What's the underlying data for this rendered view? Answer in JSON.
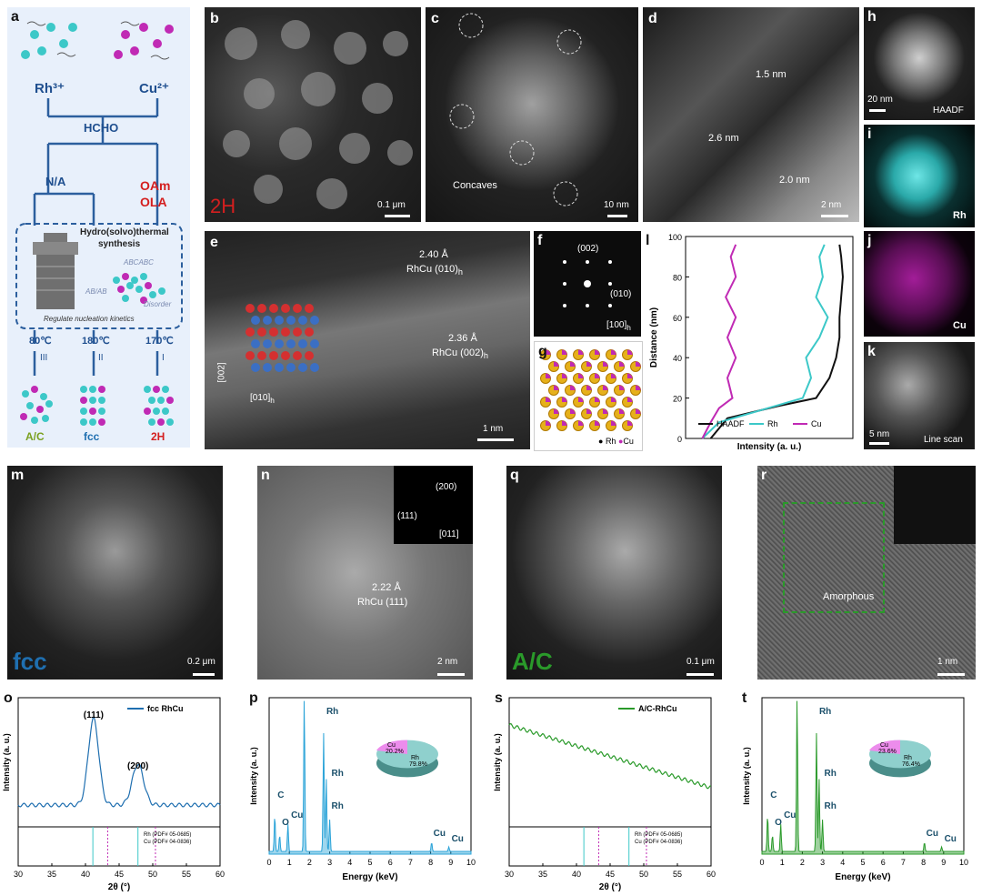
{
  "labels": {
    "a": "a",
    "b": "b",
    "c": "c",
    "d": "d",
    "e": "e",
    "f": "f",
    "g": "g",
    "h": "h",
    "i": "i",
    "j": "j",
    "k": "k",
    "l": "l",
    "m": "m",
    "n": "n",
    "o": "o",
    "p": "p",
    "q": "q",
    "r": "r",
    "s": "s",
    "t": "t"
  },
  "panel_a": {
    "rh": "Rh³⁺",
    "cu": "Cu²⁺",
    "hcho": "HCHO",
    "na": "N/A",
    "oam": "OAm",
    "ola": "OLA",
    "hydro": "Hydro(solvo)thermal",
    "synthesis": "synthesis",
    "abcabc": "ABCABC",
    "abab": "AB/AB",
    "disorder": "Disorder",
    "regulate": "Regulate nucleation kinetics",
    "t1": "80℃",
    "t2": "180℃",
    "t3": "170℃",
    "r1": "III",
    "r2": "II",
    "r3": "I",
    "p1": "A/C",
    "p2": "fcc",
    "p3": "2H"
  },
  "panel_b": {
    "tag": "2H",
    "scale": "0.1 μm"
  },
  "panel_c": {
    "text": "Concaves",
    "scale": "10 nm"
  },
  "panel_d": {
    "w1": "1.5 nm",
    "w2": "2.6 nm",
    "w3": "2.0 nm",
    "scale": "2 nm"
  },
  "panel_e": {
    "d1": "2.40 Å",
    "d1b": "RhCu (010)",
    "d2": "2.36 Å",
    "d2b": "RhCu (002)",
    "ax1": "[002]",
    "ax2": "[010]",
    "sub": "h",
    "scale": "1 nm"
  },
  "panel_f": {
    "s1": "(002)",
    "s2": "(010)",
    "zone": "[100]",
    "sub": "h"
  },
  "panel_g": {
    "rh": "Rh",
    "cu": "Cu"
  },
  "panel_h": {
    "scale": "20 nm",
    "tag": "HAADF"
  },
  "panel_i": {
    "tag": "Rh"
  },
  "panel_j": {
    "tag": "Cu"
  },
  "panel_k": {
    "scale": "5 nm",
    "tag": "Line scan"
  },
  "panel_l": {
    "ylabel": "Distance (nm)",
    "xlabel": "Intensity (a. u.)",
    "yticks": [
      "0",
      "20",
      "40",
      "60",
      "80",
      "100"
    ],
    "legend": [
      "HAADF",
      "Rh",
      "Cu"
    ]
  },
  "panel_m": {
    "tag": "fcc",
    "scale": "0.2 μm"
  },
  "panel_n": {
    "d": "2.22 Å",
    "db": "RhCu (111)",
    "s1": "(200)",
    "s2": "(111)",
    "zone": "[011]",
    "scale": "2 nm"
  },
  "panel_q": {
    "tag": "A/C",
    "scale": "0.1 μm"
  },
  "panel_r": {
    "text": "Amorphous",
    "scale": "1 nm"
  },
  "panel_o": {
    "legend": "fcc RhCu",
    "ref1": "Rh (PDF# 05-0685)",
    "ref2": "Cu (PDF# 04-0836)",
    "peak1": "(111)",
    "peak2": "(200)",
    "ylabel": "Intensity (a. u.)",
    "xlabel": "2θ (°)",
    "xticks": [
      "30",
      "35",
      "40",
      "45",
      "50",
      "55",
      "60"
    ]
  },
  "panel_p": {
    "ylabel": "Intensity (a. u.)",
    "xlabel": "Energy (keV)",
    "xticks": [
      "0",
      "1",
      "2",
      "3",
      "4",
      "5",
      "6",
      "7",
      "8",
      "9",
      "10"
    ],
    "pie_cu": "Cu",
    "pie_cu_v": "20.2%",
    "pie_rh": "Rh",
    "pie_rh_v": "79.8%",
    "peaks": [
      "C",
      "O",
      "Cu",
      "Rh",
      "Rh",
      "Rh",
      "Cu",
      "Cu"
    ]
  },
  "panel_s": {
    "legend": "A/C-RhCu",
    "ref1": "Rh (PDF# 05-0685)",
    "ref2": "Cu (PDF# 04-0836)",
    "ylabel": "Intensity (a. u.)",
    "xlabel": "2θ (°)",
    "xticks": [
      "30",
      "35",
      "40",
      "45",
      "50",
      "55",
      "60"
    ]
  },
  "panel_t": {
    "ylabel": "Intensity (a. u.)",
    "xlabel": "Energy (keV)",
    "xticks": [
      "0",
      "1",
      "2",
      "3",
      "4",
      "5",
      "6",
      "7",
      "8",
      "9",
      "10"
    ],
    "pie_cu": "Cu",
    "pie_cu_v": "23.6%",
    "pie_rh": "Rh",
    "pie_rh_v": "76.4%",
    "peaks": [
      "C",
      "O",
      "Cu",
      "Rh",
      "Rh",
      "Rh",
      "Cu",
      "Cu"
    ]
  },
  "colors": {
    "rh": "#3cc8c8",
    "cu": "#c02ab4",
    "fcc": "#1f6fb0",
    "green": "#2a9a2a",
    "red": "#d41f1f",
    "haadf": "#111111"
  },
  "chart_data": [
    {
      "type": "line",
      "panel": "l",
      "ylabel": "Distance (nm)",
      "xlabel": "Intensity (a. u.)",
      "ylim": [
        0,
        100
      ],
      "legend": "bottom",
      "series": [
        {
          "name": "HAADF",
          "y": [
            0,
            10,
            16,
            20,
            30,
            40,
            50,
            60,
            70,
            80,
            90,
            96
          ],
          "x": [
            0.15,
            0.25,
            0.55,
            0.78,
            0.86,
            0.9,
            0.92,
            0.92,
            0.93,
            0.94,
            0.93,
            0.92
          ]
        },
        {
          "name": "Rh",
          "y": [
            0,
            8,
            14,
            20,
            30,
            40,
            50,
            60,
            70,
            80,
            90,
            96
          ],
          "x": [
            0.1,
            0.2,
            0.45,
            0.7,
            0.75,
            0.72,
            0.8,
            0.85,
            0.78,
            0.82,
            0.8,
            0.83
          ]
        },
        {
          "name": "Cu",
          "y": [
            0,
            8,
            15,
            20,
            30,
            40,
            50,
            60,
            70,
            80,
            90,
            96
          ],
          "x": [
            0.1,
            0.15,
            0.2,
            0.28,
            0.25,
            0.3,
            0.25,
            0.3,
            0.24,
            0.3,
            0.27,
            0.3
          ]
        }
      ]
    },
    {
      "type": "line",
      "panel": "o",
      "xlim": [
        30,
        60
      ],
      "series": [
        {
          "name": "fcc RhCu",
          "peaks": [
            {
              "x": 41.2,
              "label": "(111)"
            },
            {
              "x": 47.8,
              "label": "(200)"
            }
          ]
        }
      ]
    },
    {
      "type": "bar",
      "panel": "p",
      "xlim": [
        0,
        10
      ],
      "pie": [
        {
          "name": "Cu",
          "value": 20.2
        },
        {
          "name": "Rh",
          "value": 79.8
        }
      ]
    },
    {
      "type": "line",
      "panel": "s",
      "xlim": [
        30,
        60
      ],
      "series": [
        {
          "name": "A/C-RhCu"
        }
      ]
    },
    {
      "type": "bar",
      "panel": "t",
      "xlim": [
        0,
        10
      ],
      "pie": [
        {
          "name": "Cu",
          "value": 23.6
        },
        {
          "name": "Rh",
          "value": 76.4
        }
      ]
    }
  ]
}
